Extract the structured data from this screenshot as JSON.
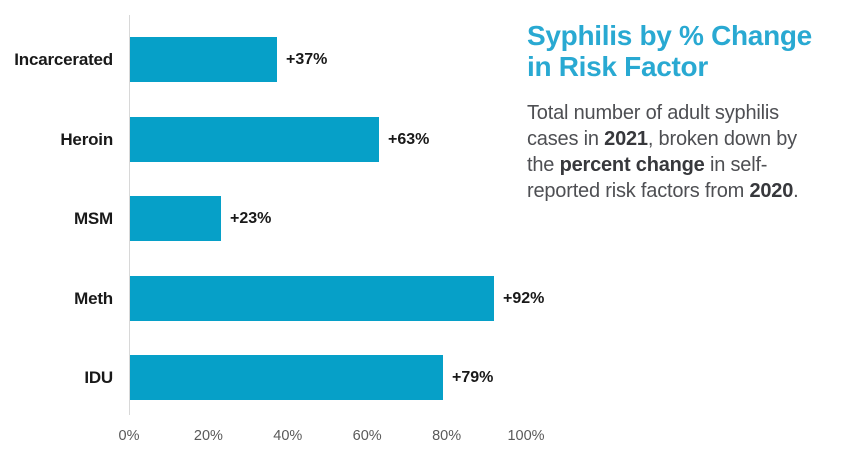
{
  "header": {
    "title_lines": [
      "Syphilis by % Change",
      "in Risk Factor"
    ],
    "title_color": "#29A9D2"
  },
  "description_lines": [
    [
      {
        "text": "Total number of adult syphilis"
      }
    ],
    [
      {
        "text": "cases in "
      },
      {
        "text": "2021",
        "bold": true
      },
      {
        "text": ", broken down by"
      }
    ],
    [
      {
        "text": "the "
      },
      {
        "text": "percent change",
        "bold": true
      },
      {
        "text": " in self-"
      }
    ],
    [
      {
        "text": "reported risk factors from "
      },
      {
        "text": "2020",
        "bold": true
      },
      {
        "text": "."
      }
    ]
  ],
  "chart_data": {
    "type": "bar",
    "orientation": "horizontal",
    "title": "Syphilis by % Change in Risk Factor",
    "categories": [
      "Incarcerated",
      "Heroin",
      "MSM",
      "Meth",
      "IDU"
    ],
    "values": [
      37,
      63,
      23,
      92,
      79
    ],
    "value_labels": [
      "+37%",
      "+63%",
      "+23%",
      "+92%",
      "+79%"
    ],
    "x_ticks": [
      "0%",
      "20%",
      "40%",
      "60%",
      "80%",
      "100%"
    ],
    "xlim": [
      0,
      100
    ],
    "bar_color": "#06A0C8",
    "axis_line_color": "#D8D8D8",
    "tick_label_color": "#595959",
    "category_label_color": "#191919",
    "grid": false,
    "legend": false
  }
}
